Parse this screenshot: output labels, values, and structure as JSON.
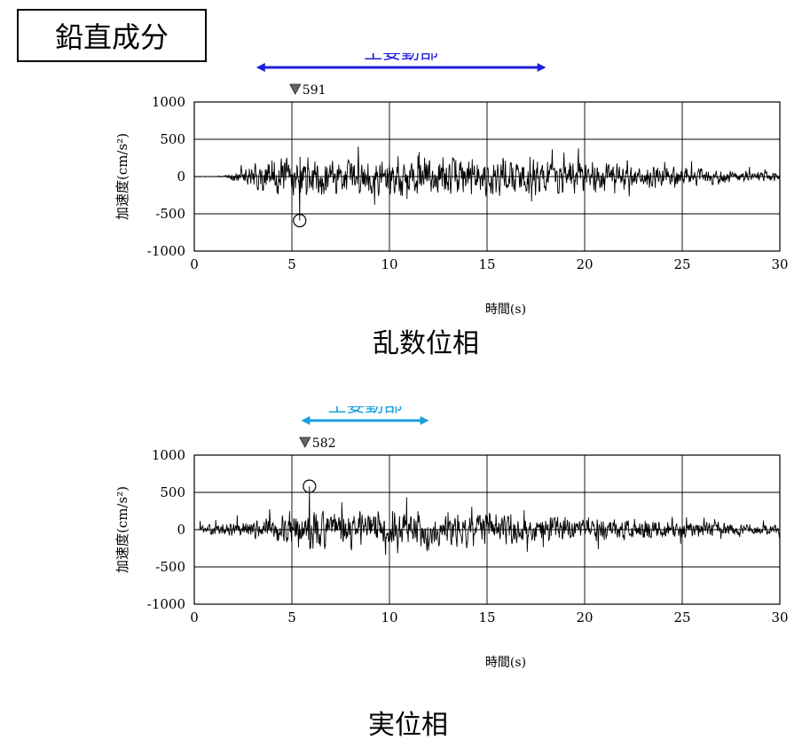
{
  "component_label": "鉛直成分",
  "chart_data": [
    {
      "type": "line",
      "caption": "乱数位相",
      "xlabel": "時間(s)",
      "ylabel": "加速度(cm/s²)",
      "xlim": [
        0,
        30
      ],
      "ylim": [
        -1000,
        1000
      ],
      "x_ticks": [
        "0",
        "5",
        "10",
        "15",
        "20",
        "25",
        "30"
      ],
      "y_ticks": [
        "1000",
        "500",
        "0",
        "-500",
        "-1000"
      ],
      "grid": true,
      "peak": {
        "time": 5.4,
        "value": -591,
        "label": "591"
      },
      "main_motion": {
        "label": "主要動部",
        "start": 3.4,
        "end": 17.8,
        "color": "#1f1fe0"
      },
      "envelope": {
        "start": 1.5,
        "end": 30,
        "rise_end": 3.5,
        "decay_start": 19,
        "amp_peak": 200,
        "amp_end": 45,
        "seed": 7
      }
    },
    {
      "type": "line",
      "caption": "実位相",
      "xlabel": "時間(s)",
      "ylabel": "加速度(cm/s²)",
      "xlim": [
        0,
        30
      ],
      "ylim": [
        -1000,
        1000
      ],
      "x_ticks": [
        "0",
        "5",
        "10",
        "15",
        "20",
        "25",
        "30"
      ],
      "y_ticks": [
        "1000",
        "500",
        "0",
        "-500",
        "-1000"
      ],
      "grid": true,
      "peak": {
        "time": 5.9,
        "value": 582,
        "label": "582"
      },
      "main_motion": {
        "label": "主要動部",
        "start": 5.7,
        "end": 11.8,
        "color": "#1aa0e0"
      },
      "envelope": {
        "start": 0.3,
        "end": 30,
        "rise_end": 5.8,
        "decay_start": 12,
        "amp_peak": 210,
        "amp_end": 50,
        "amp_pre": 45,
        "seed": 13
      }
    }
  ]
}
